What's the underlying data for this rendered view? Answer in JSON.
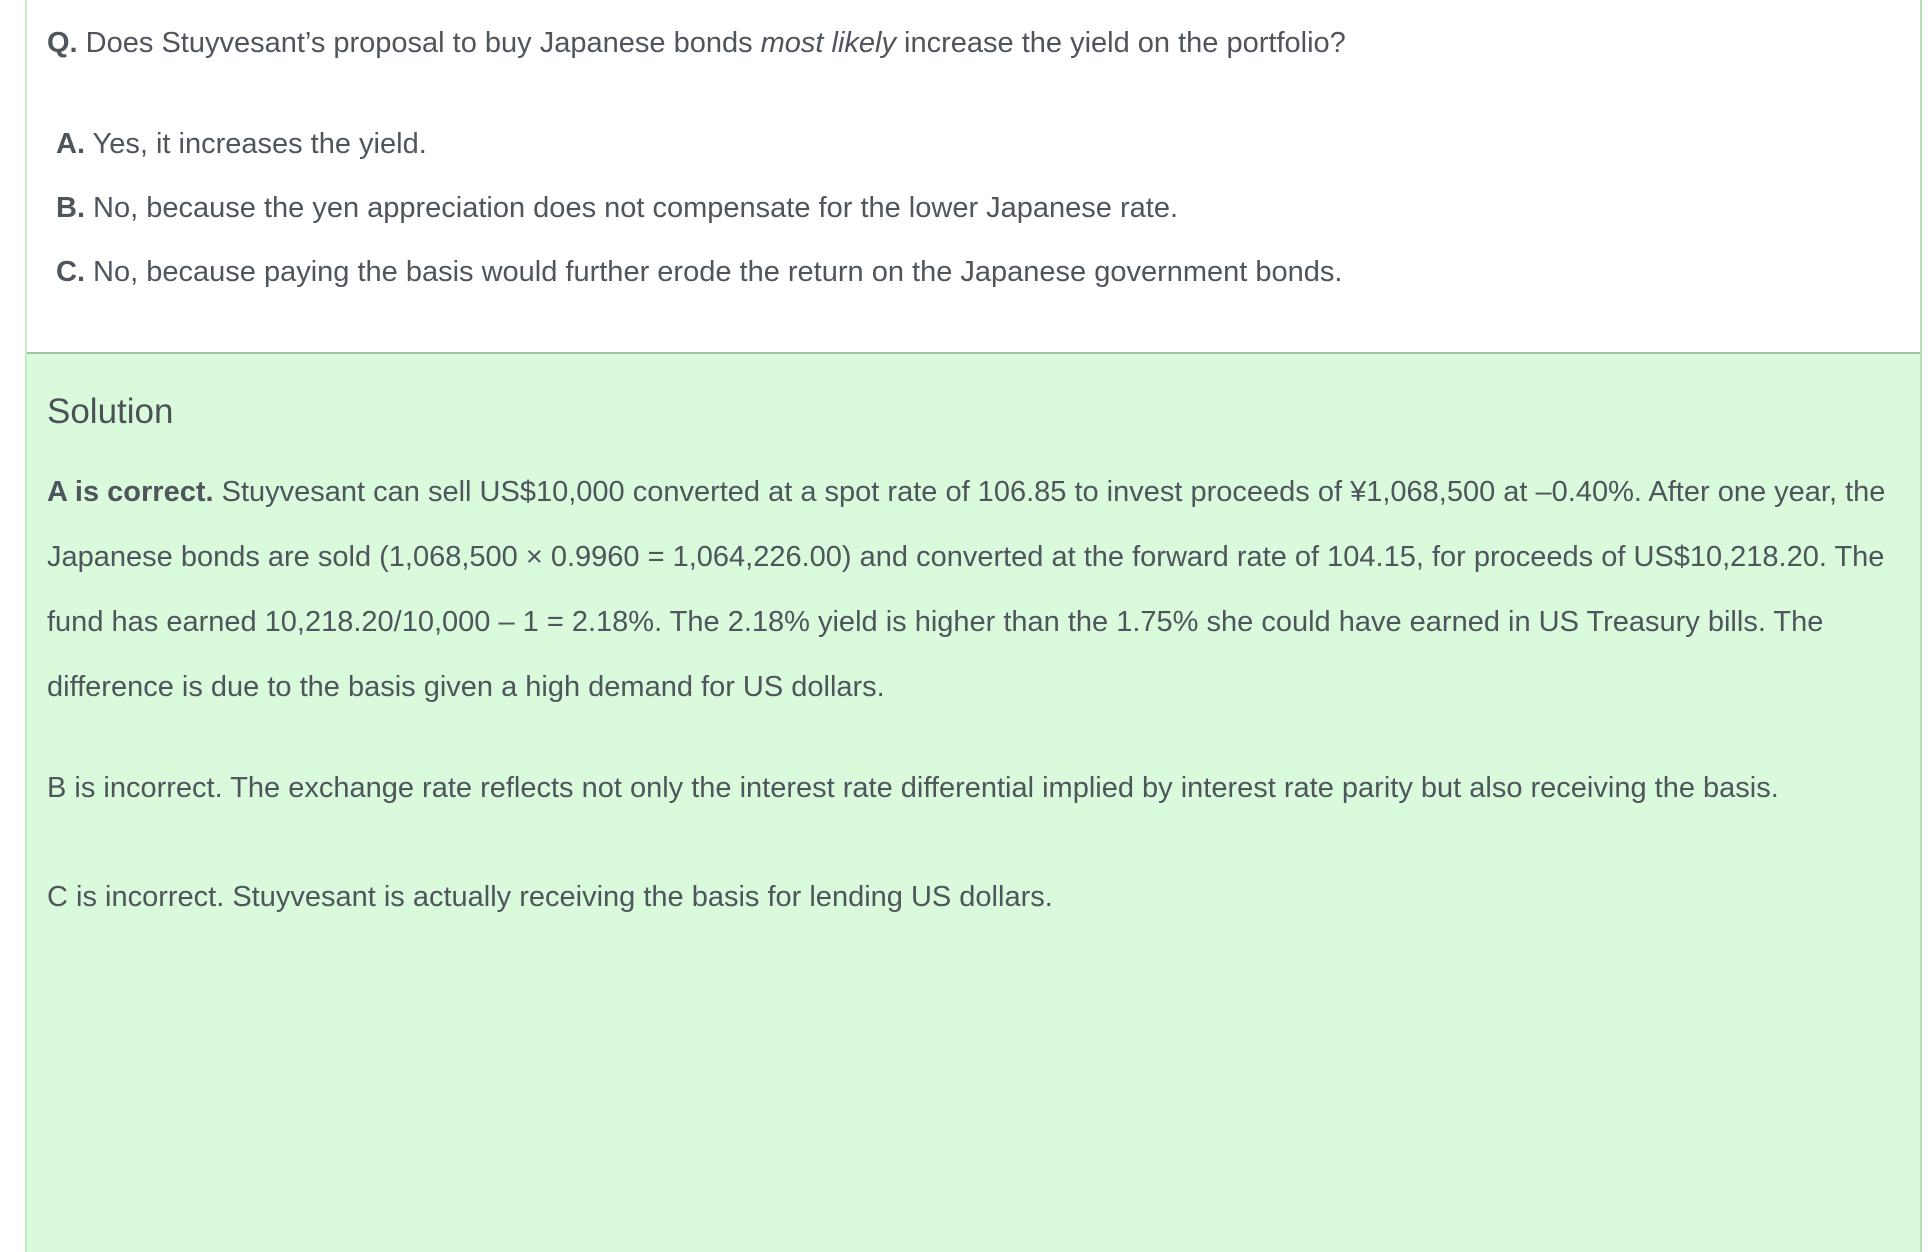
{
  "question": {
    "label": "Q.",
    "pre": " Does Stuyvesant’s proposal to buy Japanese bonds ",
    "emphasis": "most likely",
    "post": " increase the yield on the portfolio?",
    "options": [
      {
        "label": "A.",
        "text": " Yes, it increases the yield."
      },
      {
        "label": "B.",
        "text": " No, because the yen appreciation does not compensate for the lower Japanese rate."
      },
      {
        "label": "C.",
        "text": " No, because paying the basis would further erode the return on the Japanese government bonds."
      }
    ]
  },
  "solution": {
    "heading": "Solution",
    "paragraphs": [
      {
        "bold": "A is correct.",
        "text": " Stuyvesant can sell US$10,000 converted at a spot rate of 106.85 to invest proceeds of ¥1,068,500 at –0.40%. After one year, the Japanese bonds are sold (1,068,500 × 0.9960 = 1,064,226.00) and converted at the forward rate of 104.15, for proceeds of US$10,218.20. The fund has earned 10,218.20/10,000 – 1 = 2.18%. The 2.18% yield is higher than the 1.75% she could have earned in US Treasury bills. The difference is due to the basis given a high demand for US dollars."
      },
      {
        "bold": "",
        "text": "B is incorrect. The exchange rate reflects not only the interest rate differential implied by interest rate parity but also receiving the basis."
      },
      {
        "bold": "",
        "text": "C is incorrect. Stuyvesant is actually receiving the basis for lending US dollars."
      }
    ]
  },
  "colors": {
    "solution_background": "#d9fbdc",
    "card_border": "#c2eac4",
    "divider": "#9cc49e",
    "text": "#4e555c"
  }
}
